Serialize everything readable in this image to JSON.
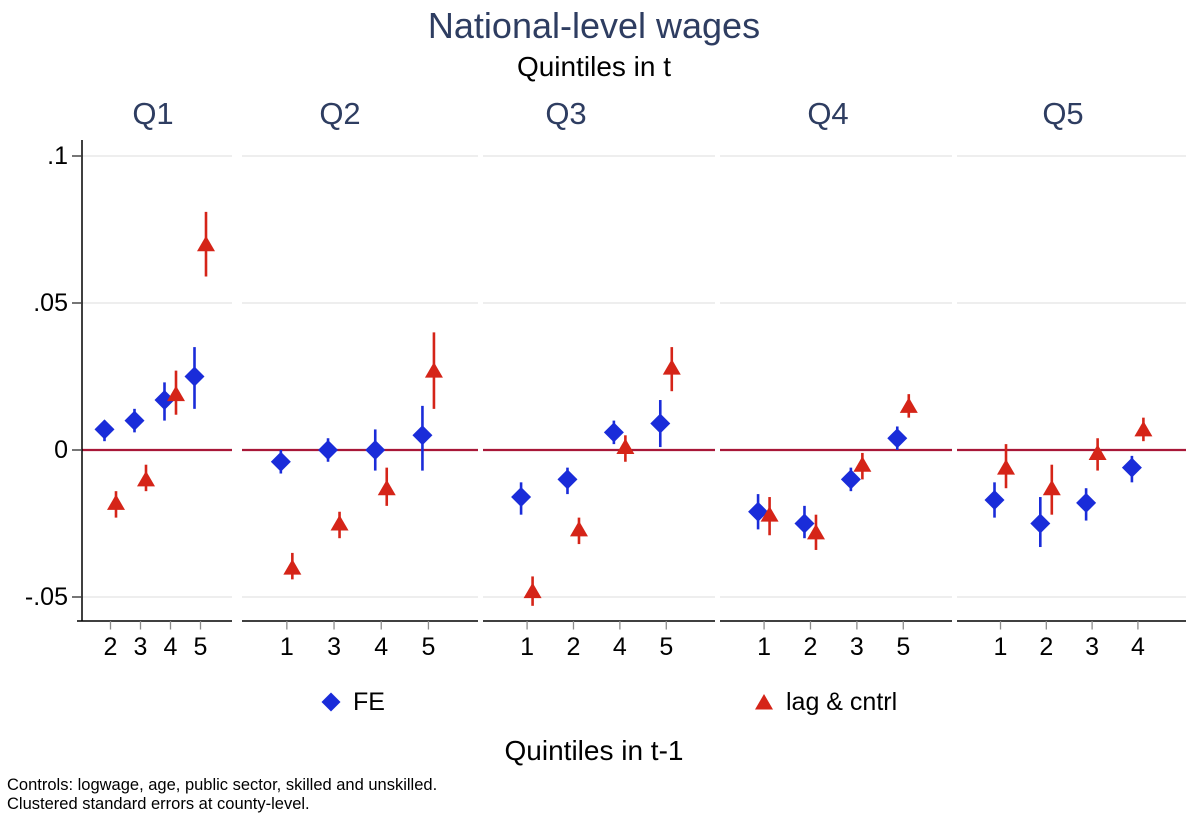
{
  "chart_data": {
    "type": "scatter",
    "title": "National-level wages",
    "subtitle": "Quintiles in t",
    "xlabel": "Quintiles in t-1",
    "ylabel": "",
    "ylim": [
      -0.06,
      0.105
    ],
    "grid": true,
    "legend_position": "bottom",
    "y_ticks": [
      {
        "label": ".1",
        "value": 0.1
      },
      {
        "label": ".05",
        "value": 0.05
      },
      {
        "label": "0",
        "value": 0
      },
      {
        "label": "-.05",
        "value": -0.05
      }
    ],
    "zero_line_value": 0,
    "colors": {
      "fe": "#1a2cd9",
      "lag": "#d52418",
      "zero_line": "#a81838",
      "heading": "#2e3d61",
      "grid": "#e8e8e8",
      "axis": "#000000",
      "x_tick": "#8c8c8c",
      "y_tick": "#3c3c3c"
    },
    "legend": [
      {
        "label": "FE",
        "marker": "diamond",
        "color_key": "fe"
      },
      {
        "label": "lag & cntrl",
        "marker": "triangle",
        "color_key": "lag"
      }
    ],
    "panels": [
      {
        "label": "Q1",
        "categories": [
          "2",
          "3",
          "4",
          "5"
        ],
        "series": [
          {
            "name": "FE",
            "points": [
              {
                "x": "2",
                "y": 0.007,
                "lo": 0.003,
                "hi": 0.01
              },
              {
                "x": "3",
                "y": 0.01,
                "lo": 0.006,
                "hi": 0.014
              },
              {
                "x": "4",
                "y": 0.017,
                "lo": 0.01,
                "hi": 0.023
              },
              {
                "x": "5",
                "y": 0.025,
                "lo": 0.014,
                "hi": 0.035
              }
            ]
          },
          {
            "name": "lag & cntrl",
            "points": [
              {
                "x": "2",
                "y": -0.018,
                "lo": -0.023,
                "hi": -0.014
              },
              {
                "x": "3",
                "y": -0.01,
                "lo": -0.014,
                "hi": -0.005
              },
              {
                "x": "4",
                "y": 0.019,
                "lo": 0.012,
                "hi": 0.027
              },
              {
                "x": "5",
                "y": 0.07,
                "lo": 0.059,
                "hi": 0.081
              }
            ]
          }
        ]
      },
      {
        "label": "Q2",
        "categories": [
          "1",
          "3",
          "4",
          "5"
        ],
        "series": [
          {
            "name": "FE",
            "points": [
              {
                "x": "1",
                "y": -0.004,
                "lo": -0.008,
                "hi": 0.0
              },
              {
                "x": "3",
                "y": 0.0,
                "lo": -0.004,
                "hi": 0.004
              },
              {
                "x": "4",
                "y": 0.0,
                "lo": -0.007,
                "hi": 0.007
              },
              {
                "x": "5",
                "y": 0.005,
                "lo": -0.007,
                "hi": 0.015
              }
            ]
          },
          {
            "name": "lag & cntrl",
            "points": [
              {
                "x": "1",
                "y": -0.04,
                "lo": -0.044,
                "hi": -0.035
              },
              {
                "x": "3",
                "y": -0.025,
                "lo": -0.03,
                "hi": -0.021
              },
              {
                "x": "4",
                "y": -0.013,
                "lo": -0.019,
                "hi": -0.006
              },
              {
                "x": "5",
                "y": 0.027,
                "lo": 0.014,
                "hi": 0.04
              }
            ]
          }
        ]
      },
      {
        "label": "Q3",
        "categories": [
          "1",
          "2",
          "4",
          "5"
        ],
        "series": [
          {
            "name": "FE",
            "points": [
              {
                "x": "1",
                "y": -0.016,
                "lo": -0.022,
                "hi": -0.011
              },
              {
                "x": "2",
                "y": -0.01,
                "lo": -0.015,
                "hi": -0.006
              },
              {
                "x": "4",
                "y": 0.006,
                "lo": 0.002,
                "hi": 0.01
              },
              {
                "x": "5",
                "y": 0.009,
                "lo": 0.001,
                "hi": 0.017
              }
            ]
          },
          {
            "name": "lag & cntrl",
            "points": [
              {
                "x": "1",
                "y": -0.048,
                "lo": -0.053,
                "hi": -0.043
              },
              {
                "x": "2",
                "y": -0.027,
                "lo": -0.032,
                "hi": -0.023
              },
              {
                "x": "4",
                "y": 0.001,
                "lo": -0.004,
                "hi": 0.005
              },
              {
                "x": "5",
                "y": 0.028,
                "lo": 0.02,
                "hi": 0.035
              }
            ]
          }
        ]
      },
      {
        "label": "Q4",
        "categories": [
          "1",
          "2",
          "3",
          "5"
        ],
        "series": [
          {
            "name": "FE",
            "points": [
              {
                "x": "1",
                "y": -0.021,
                "lo": -0.027,
                "hi": -0.015
              },
              {
                "x": "2",
                "y": -0.025,
                "lo": -0.03,
                "hi": -0.019
              },
              {
                "x": "3",
                "y": -0.01,
                "lo": -0.014,
                "hi": -0.006
              },
              {
                "x": "5",
                "y": 0.004,
                "lo": 0.0,
                "hi": 0.008
              }
            ]
          },
          {
            "name": "lag & cntrl",
            "points": [
              {
                "x": "1",
                "y": -0.022,
                "lo": -0.029,
                "hi": -0.016
              },
              {
                "x": "2",
                "y": -0.028,
                "lo": -0.034,
                "hi": -0.022
              },
              {
                "x": "3",
                "y": -0.005,
                "lo": -0.01,
                "hi": -0.001
              },
              {
                "x": "5",
                "y": 0.015,
                "lo": 0.011,
                "hi": 0.019
              }
            ]
          }
        ]
      },
      {
        "label": "Q5",
        "categories": [
          "1",
          "2",
          "3",
          "4"
        ],
        "series": [
          {
            "name": "FE",
            "points": [
              {
                "x": "1",
                "y": -0.017,
                "lo": -0.023,
                "hi": -0.011
              },
              {
                "x": "2",
                "y": -0.025,
                "lo": -0.033,
                "hi": -0.016
              },
              {
                "x": "3",
                "y": -0.018,
                "lo": -0.024,
                "hi": -0.013
              },
              {
                "x": "4",
                "y": -0.006,
                "lo": -0.011,
                "hi": -0.002
              }
            ]
          },
          {
            "name": "lag & cntrl",
            "points": [
              {
                "x": "1",
                "y": -0.006,
                "lo": -0.013,
                "hi": 0.002
              },
              {
                "x": "2",
                "y": -0.013,
                "lo": -0.022,
                "hi": -0.005
              },
              {
                "x": "3",
                "y": -0.001,
                "lo": -0.007,
                "hi": 0.004
              },
              {
                "x": "4",
                "y": 0.007,
                "lo": 0.003,
                "hi": 0.011
              }
            ]
          }
        ]
      }
    ],
    "notes": [
      "Controls: logwage, age, public sector, skilled and unskilled.",
      "Clustered standard errors at county-level."
    ]
  }
}
